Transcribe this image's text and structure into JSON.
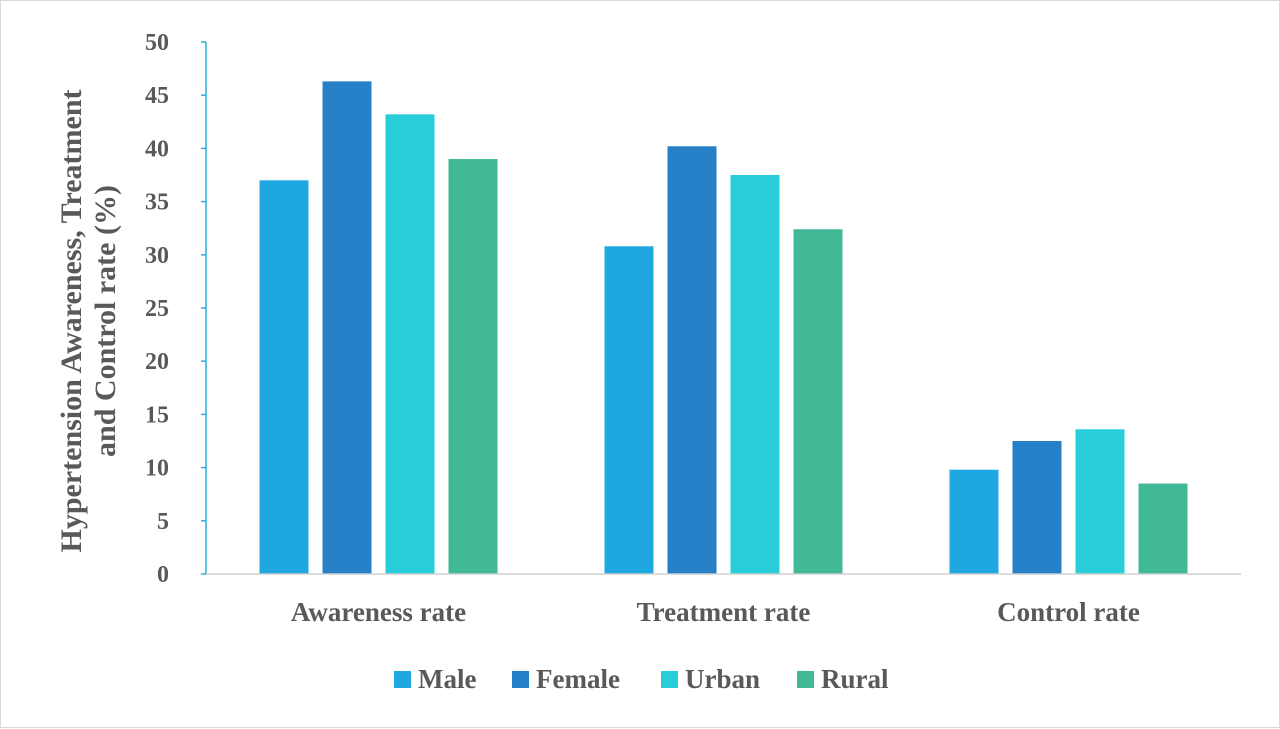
{
  "chart_data": {
    "type": "bar",
    "categories": [
      "Awareness rate",
      "Treatment rate",
      "Control rate"
    ],
    "series": [
      {
        "name": "Male",
        "color": "#1EA7E1",
        "values": [
          37.0,
          30.8,
          9.8
        ]
      },
      {
        "name": "Female",
        "color": "#2580C8",
        "values": [
          46.3,
          40.2,
          12.5
        ]
      },
      {
        "name": "Urban",
        "color": "#27CDD9",
        "values": [
          43.2,
          37.5,
          13.6
        ]
      },
      {
        "name": "Rural",
        "color": "#41B896",
        "values": [
          39.0,
          32.4,
          8.5
        ]
      }
    ],
    "ylabel_lines": [
      "Hypertension Awareness, Treatment",
      "and Control rate (%)"
    ],
    "ylim": [
      0,
      50
    ],
    "yticks": [
      0,
      5,
      10,
      15,
      20,
      25,
      30,
      35,
      40,
      45,
      50
    ],
    "legend_position": "bottom",
    "grid": false
  }
}
